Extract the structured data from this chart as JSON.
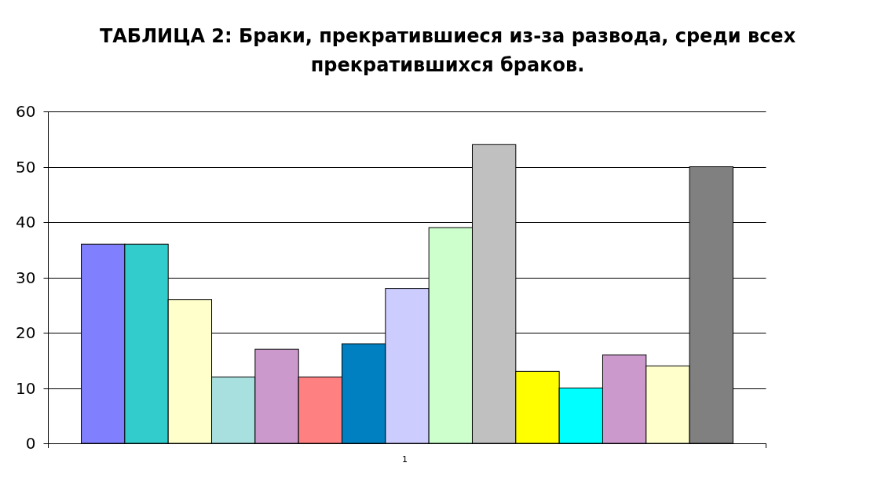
{
  "chart_data": {
    "type": "bar",
    "title": "ТАБЛИЦА 2: Браки, прекратившиеся из-за развода, среди всех прекратившихся браков.",
    "categories": [
      "1"
    ],
    "series": [
      {
        "color": "#8080ff",
        "values": [
          36
        ]
      },
      {
        "color": "#33cccc",
        "values": [
          36
        ]
      },
      {
        "color": "#ffffcc",
        "values": [
          26
        ]
      },
      {
        "color": "#a8e0e0",
        "values": [
          12
        ]
      },
      {
        "color": "#cc99cc",
        "values": [
          17
        ]
      },
      {
        "color": "#ff8080",
        "values": [
          12
        ]
      },
      {
        "color": "#0080c0",
        "values": [
          18
        ]
      },
      {
        "color": "#ccccff",
        "values": [
          28
        ]
      },
      {
        "color": "#ccffcc",
        "values": [
          39
        ]
      },
      {
        "color": "#c0c0c0",
        "values": [
          54
        ]
      },
      {
        "color": "#ffff00",
        "values": [
          13
        ]
      },
      {
        "color": "#00ffff",
        "values": [
          10
        ]
      },
      {
        "color": "#cc99cc",
        "values": [
          16
        ]
      },
      {
        "color": "#ffffcc",
        "values": [
          14
        ]
      },
      {
        "color": "#808080",
        "values": [
          50
        ]
      }
    ],
    "ylim": [
      0,
      60
    ],
    "yticks": [
      0,
      10,
      20,
      30,
      40,
      50,
      60
    ],
    "grid": "y"
  }
}
